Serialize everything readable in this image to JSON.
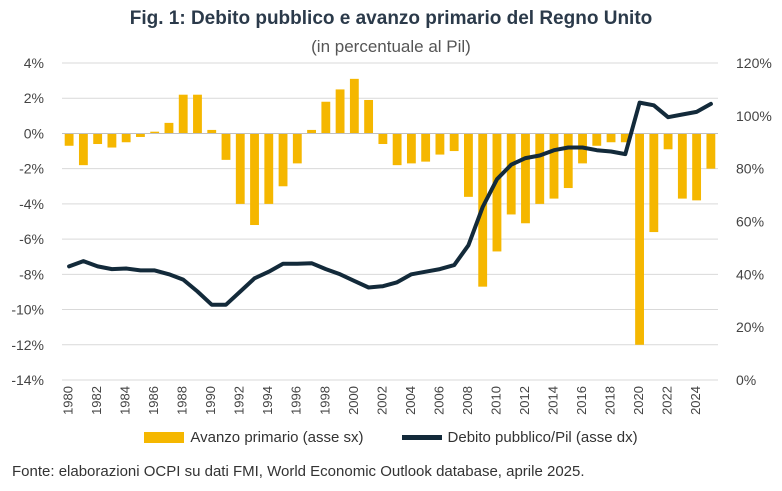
{
  "header": {
    "title": "Fig. 1: Debito pubblico e avanzo primario del Regno Unito",
    "subtitle": "(in percentuale al Pil)"
  },
  "source": "Fonte: elaborazioni OCPI su dati FMI, World Economic Outlook database, aprile 2025.",
  "colors": {
    "bars": "#f5b700",
    "line": "#132a3a",
    "grid": "#d9d9d9"
  },
  "chart_data": {
    "type": "bar+line",
    "title": "Fig. 1: Debito pubblico e avanzo primario del Regno Unito",
    "subtitle": "(in percentuale al Pil)",
    "x": [
      1980,
      1981,
      1982,
      1983,
      1984,
      1985,
      1986,
      1987,
      1988,
      1989,
      1990,
      1991,
      1992,
      1993,
      1994,
      1995,
      1996,
      1997,
      1998,
      1999,
      2000,
      2001,
      2002,
      2003,
      2004,
      2005,
      2006,
      2007,
      2008,
      2009,
      2010,
      2011,
      2012,
      2013,
      2014,
      2015,
      2016,
      2017,
      2018,
      2019,
      2020,
      2021,
      2022,
      2023,
      2024,
      2025
    ],
    "x_tick_labels": [
      "1980",
      "1982",
      "1984",
      "1986",
      "1988",
      "1990",
      "1992",
      "1994",
      "1996",
      "1998",
      "2000",
      "2002",
      "2004",
      "2006",
      "2008",
      "2010",
      "2012",
      "2014",
      "2016",
      "2018",
      "2020",
      "2022",
      "2024"
    ],
    "series": [
      {
        "name": "Avanzo primario (asse sx)",
        "type": "bar",
        "axis": "left",
        "values": [
          -0.7,
          -1.8,
          -0.6,
          -0.8,
          -0.5,
          -0.2,
          0.1,
          0.6,
          2.2,
          2.2,
          0.2,
          -1.5,
          -4.0,
          -5.2,
          -4.0,
          -3.0,
          -1.7,
          0.2,
          1.8,
          2.5,
          3.1,
          1.9,
          -0.6,
          -1.8,
          -1.7,
          -1.6,
          -1.2,
          -1.0,
          -3.6,
          -8.7,
          -6.7,
          -4.6,
          -5.1,
          -4.0,
          -3.7,
          -3.1,
          -1.7,
          -0.7,
          -0.5,
          -0.5,
          -12.0,
          -5.6,
          -0.9,
          -3.7,
          -3.8,
          -2.0
        ]
      },
      {
        "name": "Debito pubblico/Pil (asse dx)",
        "type": "line",
        "axis": "right",
        "values": [
          43,
          45,
          43,
          42,
          42.2,
          41.5,
          41.5,
          40,
          38,
          33.5,
          28.5,
          28.5,
          33.5,
          38.5,
          41,
          44,
          44,
          44.2,
          42,
          40,
          37.5,
          35,
          35.5,
          37,
          40,
          41,
          42,
          43.5,
          51,
          65.5,
          76,
          81.5,
          84,
          85,
          87,
          88,
          88,
          87,
          86.5,
          85.5,
          105,
          104,
          99.5,
          100.5,
          101.5,
          104.5
        ]
      }
    ],
    "y_left": {
      "min": -14,
      "max": 4,
      "ticks": [
        "-14%",
        "-12%",
        "-10%",
        "-8%",
        "-6%",
        "-4%",
        "-2%",
        "0%",
        "2%",
        "4%"
      ]
    },
    "y_right": {
      "min": 0,
      "max": 120,
      "ticks": [
        "0%",
        "20%",
        "40%",
        "60%",
        "80%",
        "100%",
        "120%"
      ]
    },
    "grid": true,
    "legend_position": "bottom"
  }
}
